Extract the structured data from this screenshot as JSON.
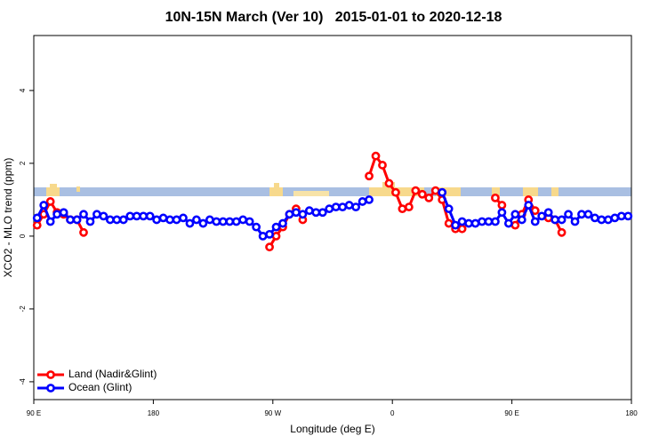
{
  "chart_data": {
    "type": "line",
    "title": "10N-15N March (Ver 10)   2015-01-01 to 2020-12-18",
    "xlabel": "Longitude (deg E)",
    "ylabel": "XCO2 - MLO trend (ppm)",
    "xlim": [
      90,
      540
    ],
    "ylim": [
      -4.49,
      5.51
    ],
    "xticks": [
      {
        "value": 90,
        "label": "90 E"
      },
      180,
      {
        "value": 270,
        "label": "90 W"
      },
      {
        "value": 360,
        "label": "0"
      },
      {
        "value": 450,
        "label": "90 E"
      },
      {
        "value": 540,
        "label": "180"
      }
    ],
    "yticks": [
      -4,
      -2,
      0,
      2,
      4
    ],
    "legend": "bottom-left",
    "series": [
      {
        "name": "Land (Nadir&Glint)",
        "color": "#ff0000",
        "x": [
          92.5,
          97.5,
          102.5,
          107.5,
          112.5,
          117.5,
          122.5,
          127.5,
          132.5,
          267.5,
          272.5,
          277.5,
          282.5,
          287.5,
          292.5,
          297.5,
          342.5,
          347.5,
          352.5,
          357.5,
          362.5,
          367.5,
          372.5,
          377.5,
          382.5,
          387.5,
          392.5,
          397.5,
          402.5,
          407.5,
          412.5,
          417.5,
          437.5,
          442.5,
          447.5,
          452.5,
          457.5,
          462.5,
          467.5,
          472.5,
          477.5,
          482.5,
          487.5
        ],
        "values": [
          0.3,
          0.6,
          0.95,
          0.65,
          0.6,
          0.45,
          0.45,
          0.1,
          null,
          -0.3,
          0.0,
          0.25,
          0.6,
          0.75,
          0.45,
          null,
          1.65,
          2.2,
          1.95,
          1.45,
          1.2,
          0.75,
          0.8,
          1.25,
          1.15,
          1.05,
          1.25,
          1.0,
          0.35,
          0.2,
          0.2,
          null,
          1.05,
          0.85,
          null,
          0.3,
          0.6,
          1.0,
          0.7,
          null,
          0.5,
          0.45,
          0.1
        ]
      },
      {
        "name": "Ocean (Glint)",
        "color": "#0000ff",
        "x": [
          92.5,
          97.5,
          102.5,
          107.5,
          112.5,
          117.5,
          122.5,
          127.5,
          132.5,
          137.5,
          142.5,
          147.5,
          152.5,
          157.5,
          162.5,
          167.5,
          172.5,
          177.5,
          182.5,
          187.5,
          192.5,
          197.5,
          202.5,
          207.5,
          212.5,
          217.5,
          222.5,
          227.5,
          232.5,
          237.5,
          242.5,
          247.5,
          252.5,
          257.5,
          262.5,
          267.5,
          272.5,
          277.5,
          282.5,
          287.5,
          292.5,
          297.5,
          302.5,
          307.5,
          312.5,
          317.5,
          322.5,
          327.5,
          332.5,
          337.5,
          342.5,
          347.5,
          352.5,
          357.5,
          362.5,
          367.5,
          372.5,
          377.5,
          382.5,
          387.5,
          392.5,
          397.5,
          402.5,
          407.5,
          412.5,
          417.5,
          422.5,
          427.5,
          432.5,
          437.5,
          442.5,
          447.5,
          452.5,
          457.5,
          462.5,
          467.5,
          472.5,
          477.5,
          482.5,
          487.5,
          492.5,
          497.5,
          502.5,
          507.5,
          512.5,
          517.5,
          522.5,
          527.5,
          532.5,
          537.5
        ],
        "values": [
          0.5,
          0.85,
          0.4,
          0.6,
          0.65,
          0.45,
          0.45,
          0.6,
          0.4,
          0.6,
          0.55,
          0.45,
          0.45,
          0.45,
          0.55,
          0.55,
          0.55,
          0.55,
          0.45,
          0.5,
          0.45,
          0.45,
          0.5,
          0.35,
          0.45,
          0.35,
          0.45,
          0.4,
          0.4,
          0.4,
          0.4,
          0.45,
          0.4,
          0.25,
          0.0,
          0.05,
          0.25,
          0.35,
          0.6,
          0.65,
          0.6,
          0.7,
          0.65,
          0.65,
          0.75,
          0.8,
          0.8,
          0.85,
          0.8,
          0.95,
          1.0,
          null,
          null,
          null,
          null,
          null,
          null,
          null,
          null,
          null,
          null,
          1.2,
          0.75,
          0.3,
          0.4,
          0.35,
          0.35,
          0.4,
          0.4,
          0.4,
          0.65,
          0.35,
          0.6,
          0.45,
          0.85,
          0.4,
          0.55,
          0.65,
          0.45,
          0.45,
          0.6,
          0.4,
          0.6,
          0.6,
          0.5,
          0.45,
          0.45,
          0.5,
          0.55,
          0.55
        ]
      }
    ]
  }
}
